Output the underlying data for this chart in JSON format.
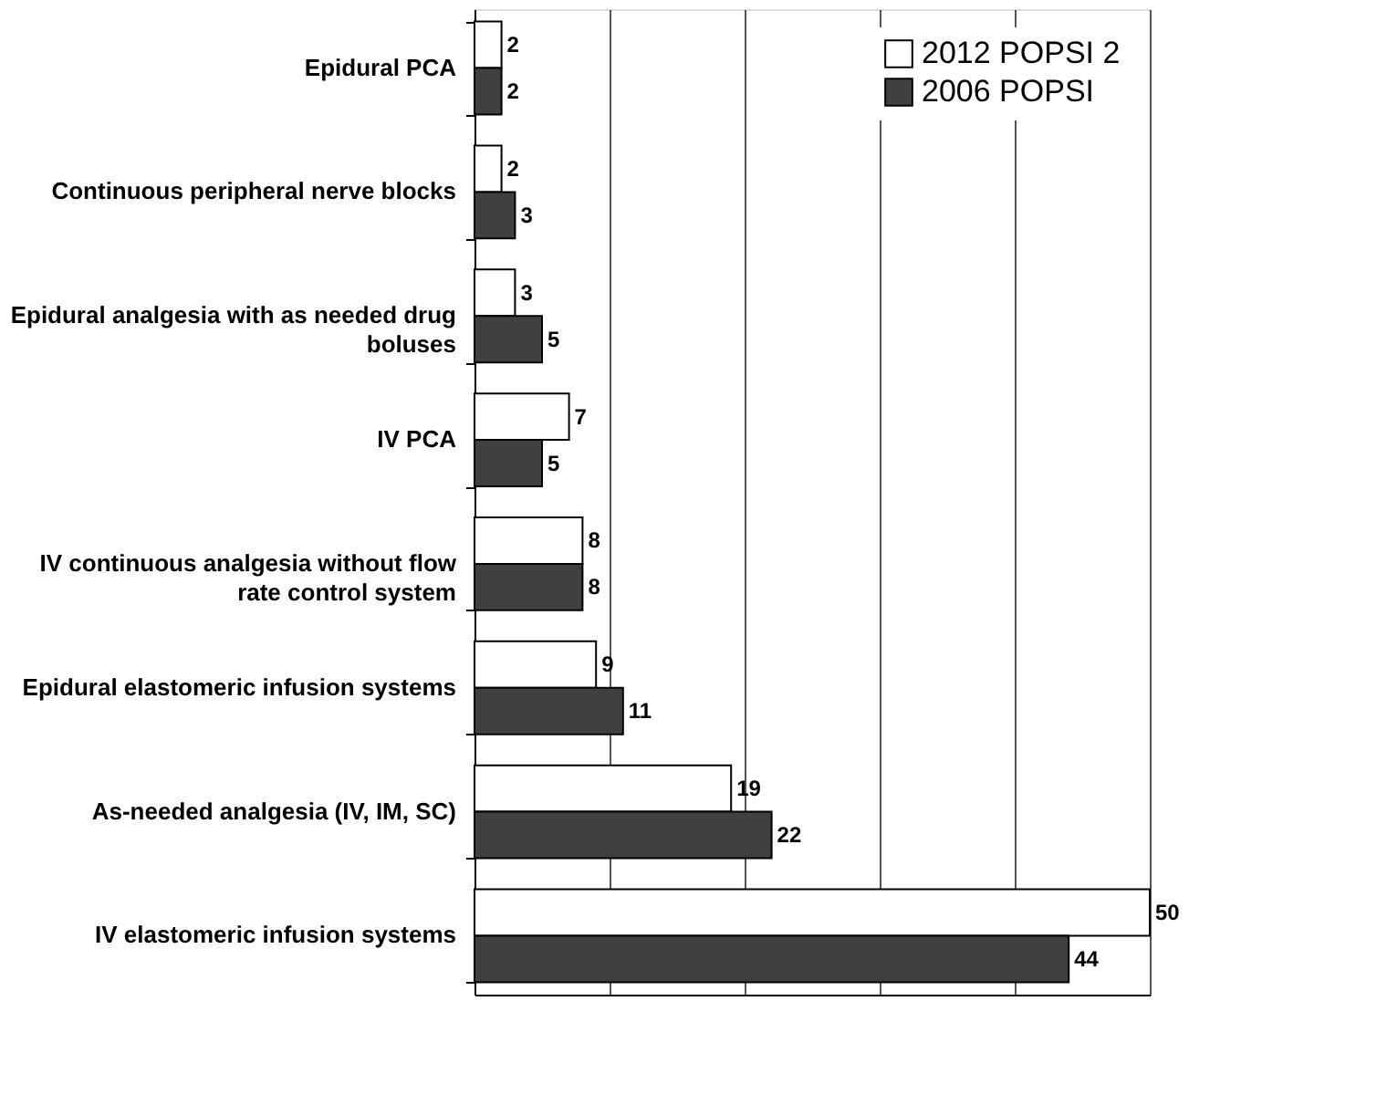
{
  "chart_data": {
    "type": "bar",
    "orientation": "horizontal",
    "categories": [
      "Epidural PCA",
      "Continuous peripheral nerve blocks",
      "Epidural analgesia with as needed drug boluses",
      "IV PCA",
      "IV continuous analgesia without flow rate control system",
      "Epidural elastomeric infusion systems",
      "As-needed analgesia (IV, IM, SC)",
      "IV elastomeric infusion systems"
    ],
    "series": [
      {
        "name": "2012 POPSI 2",
        "color": "#ffffff",
        "values": [
          2,
          2,
          3,
          7,
          8,
          9,
          19,
          50
        ]
      },
      {
        "name": "2006 POPSI",
        "color": "#404040",
        "values": [
          2,
          3,
          5,
          5,
          8,
          11,
          22,
          44
        ]
      }
    ],
    "xlim": [
      0,
      50
    ],
    "xticks": [
      {
        "value": 0,
        "label": null
      },
      {
        "value": 10,
        "label": null
      },
      {
        "value": 20,
        "label": null
      },
      {
        "value": 30,
        "label": null
      },
      {
        "value": 40,
        "label": null
      },
      {
        "value": 50,
        "label": null
      }
    ],
    "grid": "x",
    "legend": "top right",
    "data_labels": true,
    "tick_labels": "y"
  }
}
